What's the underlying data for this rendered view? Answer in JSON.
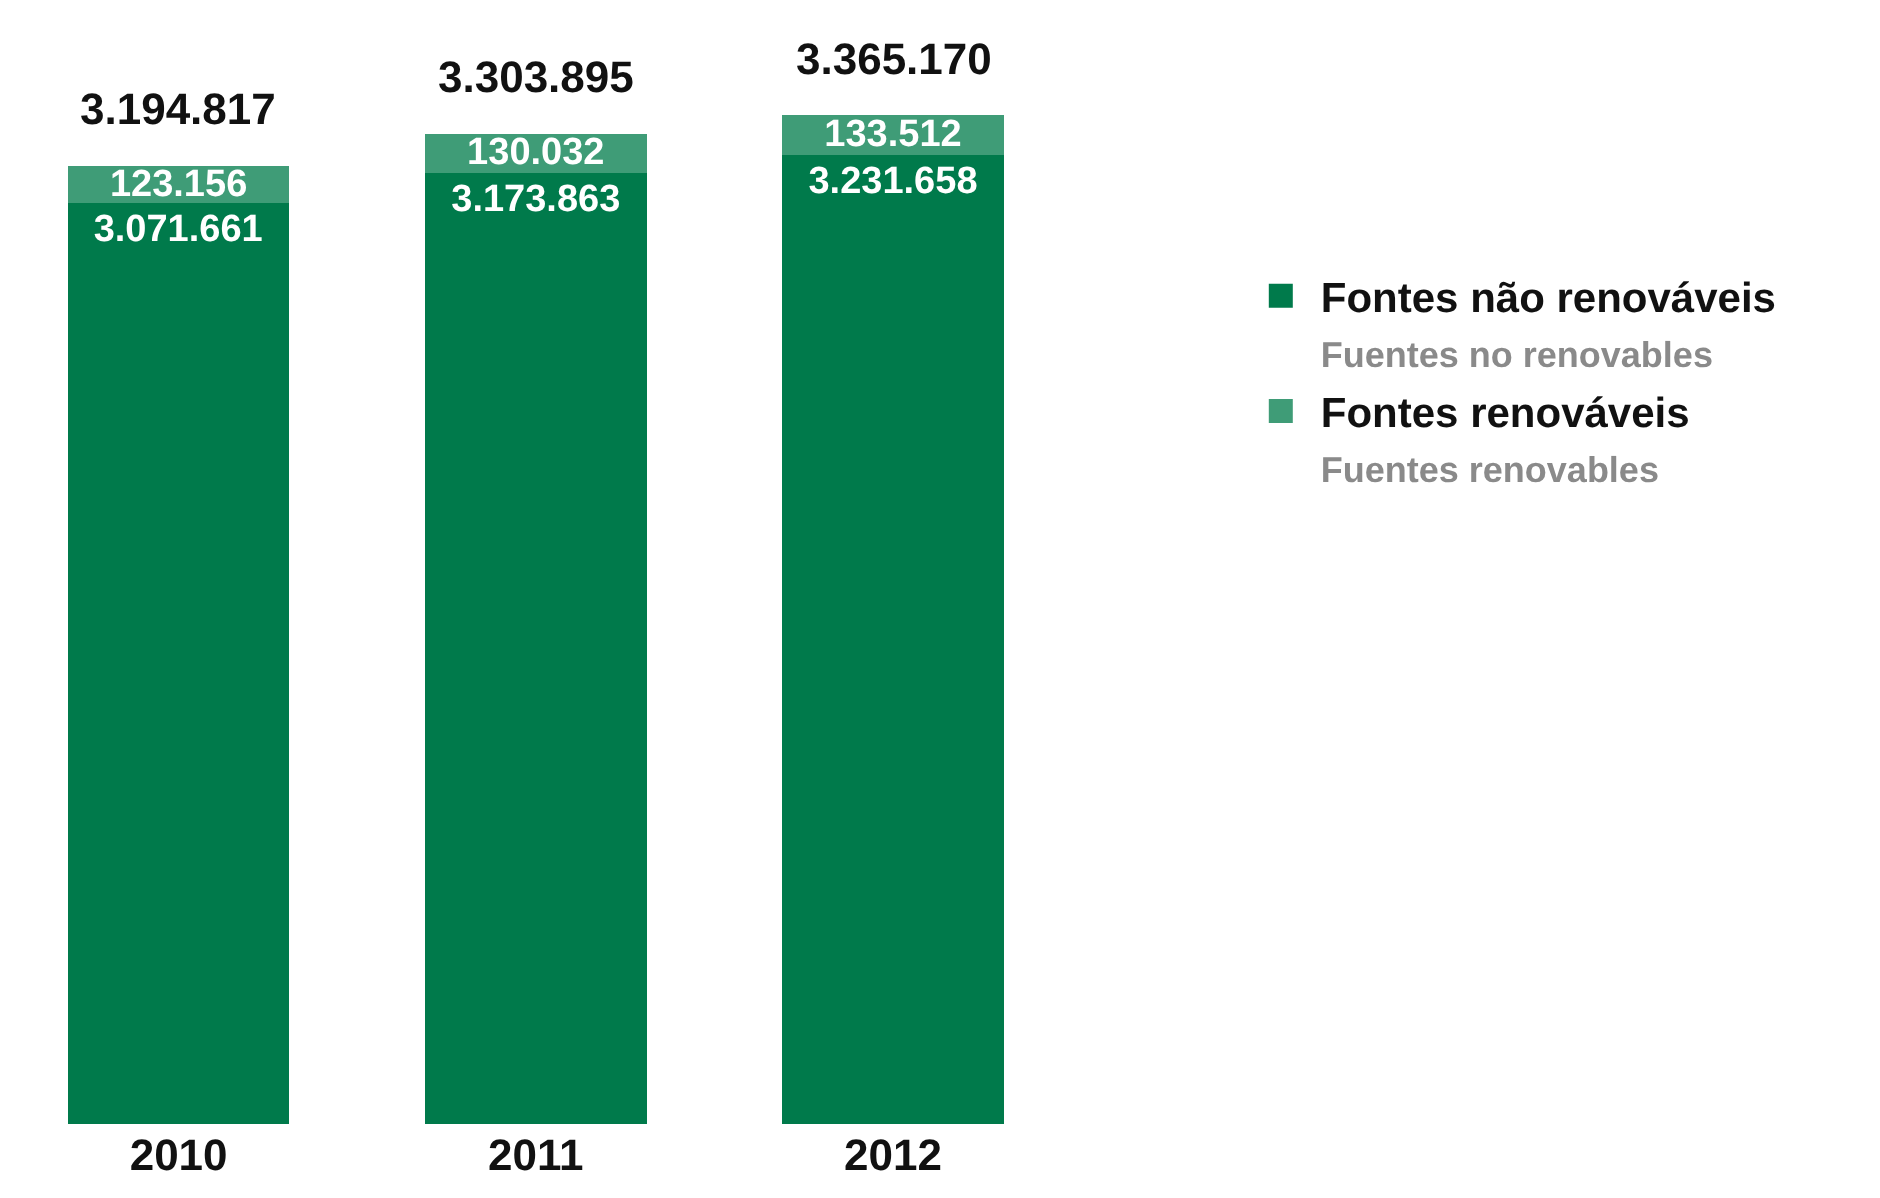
{
  "chart_data": {
    "type": "bar",
    "stacked": true,
    "categories": [
      "2010",
      "2011",
      "2012"
    ],
    "series": [
      {
        "name": "Fontes não renováveis\nFuentes no renovables",
        "color": "#007a4b",
        "values": [
          3071661,
          3173863,
          3231658
        ],
        "value_labels": [
          "3.071.661",
          "3.173.863",
          "3.231.658"
        ]
      },
      {
        "name": "Fontes renováveis\nFuentes renovables",
        "color": "#3f9c77",
        "values": [
          123156,
          130032,
          133512
        ],
        "value_labels": [
          "123.156",
          "130.032",
          "133.512"
        ]
      }
    ],
    "totals": [
      "3.194.817",
      "3.303.895",
      "3.365.170"
    ],
    "legend": "right",
    "grid": false,
    "tick_labels": "x"
  }
}
